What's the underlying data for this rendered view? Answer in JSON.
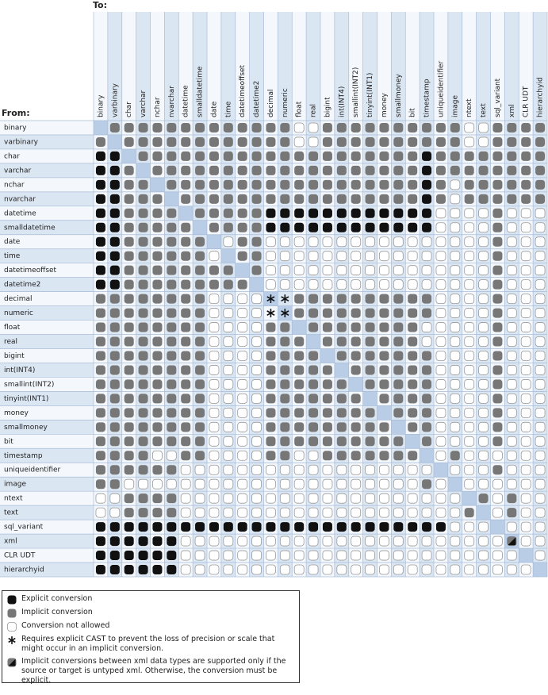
{
  "to_label": "To:",
  "from_label": "From:",
  "types": [
    "binary",
    "varbinary",
    "char",
    "varchar",
    "nchar",
    "nvarchar",
    "datetime",
    "smalldatetime",
    "date",
    "time",
    "datetimeoffset",
    "datetime2",
    "decimal",
    "numeric",
    "float",
    "real",
    "bigint",
    "int(INT4)",
    "smallint(INT2)",
    "tinyint(INT1)",
    "money",
    "smallmoney",
    "bit",
    "timestamp",
    "uniqueidentifier",
    "image",
    "ntext",
    "text",
    "sql_variant",
    "xml",
    "CLR UDT",
    "hierarchyid"
  ],
  "legend": [
    {
      "label": "Explicit conversion"
    },
    {
      "label": "Implicit conversion"
    },
    {
      "label": "Conversion not allowed"
    },
    {
      "label": "Requires explicit CAST to prevent the loss of precision or scale that might occur in an implicit conversion."
    },
    {
      "label": "Implicit conversions between xml data types are supported only if the source or target is untyped xml. Otherwise, the conversion must be explicit."
    }
  ],
  "cells": [
    [
      null,
      1,
      1,
      1,
      1,
      1,
      1,
      1,
      1,
      1,
      1,
      1,
      1,
      1,
      2,
      2,
      1,
      1,
      1,
      1,
      1,
      1,
      1,
      1,
      1,
      1,
      2,
      2,
      1,
      1,
      1,
      1
    ],
    [
      1,
      null,
      1,
      1,
      1,
      1,
      1,
      1,
      1,
      1,
      1,
      1,
      1,
      1,
      2,
      2,
      1,
      1,
      1,
      1,
      1,
      1,
      1,
      1,
      1,
      1,
      2,
      2,
      1,
      1,
      1,
      1
    ],
    [
      0,
      0,
      null,
      1,
      1,
      1,
      1,
      1,
      1,
      1,
      1,
      1,
      1,
      1,
      1,
      1,
      1,
      1,
      1,
      1,
      1,
      1,
      1,
      0,
      1,
      1,
      1,
      1,
      1,
      1,
      1,
      1
    ],
    [
      0,
      0,
      1,
      null,
      1,
      1,
      1,
      1,
      1,
      1,
      1,
      1,
      1,
      1,
      1,
      1,
      1,
      1,
      1,
      1,
      1,
      1,
      1,
      0,
      1,
      1,
      1,
      1,
      1,
      1,
      1,
      1
    ],
    [
      0,
      0,
      1,
      1,
      null,
      1,
      1,
      1,
      1,
      1,
      1,
      1,
      1,
      1,
      1,
      1,
      1,
      1,
      1,
      1,
      1,
      1,
      1,
      0,
      1,
      2,
      1,
      1,
      1,
      1,
      1,
      1
    ],
    [
      0,
      0,
      1,
      1,
      1,
      null,
      1,
      1,
      1,
      1,
      1,
      1,
      1,
      1,
      1,
      1,
      1,
      1,
      1,
      1,
      1,
      1,
      1,
      0,
      1,
      2,
      1,
      1,
      1,
      1,
      1,
      1
    ],
    [
      0,
      0,
      1,
      1,
      1,
      1,
      null,
      1,
      1,
      1,
      1,
      1,
      0,
      0,
      0,
      0,
      0,
      0,
      0,
      0,
      0,
      0,
      0,
      0,
      2,
      2,
      2,
      2,
      1,
      2,
      2,
      2
    ],
    [
      0,
      0,
      1,
      1,
      1,
      1,
      1,
      null,
      1,
      1,
      1,
      1,
      0,
      0,
      0,
      0,
      0,
      0,
      0,
      0,
      0,
      0,
      0,
      0,
      2,
      2,
      2,
      2,
      1,
      2,
      2,
      2
    ],
    [
      0,
      0,
      1,
      1,
      1,
      1,
      1,
      1,
      null,
      2,
      1,
      1,
      2,
      2,
      2,
      2,
      2,
      2,
      2,
      2,
      2,
      2,
      2,
      2,
      2,
      2,
      2,
      2,
      1,
      2,
      2,
      2
    ],
    [
      0,
      0,
      1,
      1,
      1,
      1,
      1,
      1,
      2,
      null,
      1,
      1,
      2,
      2,
      2,
      2,
      2,
      2,
      2,
      2,
      2,
      2,
      2,
      2,
      2,
      2,
      2,
      2,
      1,
      2,
      2,
      2
    ],
    [
      0,
      0,
      1,
      1,
      1,
      1,
      1,
      1,
      1,
      1,
      null,
      1,
      2,
      2,
      2,
      2,
      2,
      2,
      2,
      2,
      2,
      2,
      2,
      2,
      2,
      2,
      2,
      2,
      1,
      2,
      2,
      2
    ],
    [
      0,
      0,
      1,
      1,
      1,
      1,
      1,
      1,
      1,
      1,
      1,
      null,
      2,
      2,
      2,
      2,
      2,
      2,
      2,
      2,
      2,
      2,
      2,
      2,
      2,
      2,
      2,
      2,
      1,
      2,
      2,
      2
    ],
    [
      1,
      1,
      1,
      1,
      1,
      1,
      1,
      1,
      2,
      2,
      2,
      2,
      3,
      3,
      1,
      1,
      1,
      1,
      1,
      1,
      1,
      1,
      1,
      1,
      2,
      2,
      2,
      2,
      1,
      2,
      2,
      2
    ],
    [
      1,
      1,
      1,
      1,
      1,
      1,
      1,
      1,
      2,
      2,
      2,
      2,
      3,
      3,
      1,
      1,
      1,
      1,
      1,
      1,
      1,
      1,
      1,
      1,
      2,
      2,
      2,
      2,
      1,
      2,
      2,
      2
    ],
    [
      1,
      1,
      1,
      1,
      1,
      1,
      1,
      1,
      2,
      2,
      2,
      2,
      1,
      1,
      null,
      1,
      1,
      1,
      1,
      1,
      1,
      1,
      1,
      2,
      2,
      2,
      2,
      2,
      1,
      2,
      2,
      2
    ],
    [
      1,
      1,
      1,
      1,
      1,
      1,
      1,
      1,
      2,
      2,
      2,
      2,
      1,
      1,
      1,
      null,
      1,
      1,
      1,
      1,
      1,
      1,
      1,
      2,
      2,
      2,
      2,
      2,
      1,
      2,
      2,
      2
    ],
    [
      1,
      1,
      1,
      1,
      1,
      1,
      1,
      1,
      2,
      2,
      2,
      2,
      1,
      1,
      1,
      1,
      null,
      1,
      1,
      1,
      1,
      1,
      1,
      1,
      2,
      2,
      2,
      2,
      1,
      2,
      2,
      2
    ],
    [
      1,
      1,
      1,
      1,
      1,
      1,
      1,
      1,
      2,
      2,
      2,
      2,
      1,
      1,
      1,
      1,
      1,
      null,
      1,
      1,
      1,
      1,
      1,
      1,
      2,
      2,
      2,
      2,
      1,
      2,
      2,
      2
    ],
    [
      1,
      1,
      1,
      1,
      1,
      1,
      1,
      1,
      2,
      2,
      2,
      2,
      1,
      1,
      1,
      1,
      1,
      1,
      null,
      1,
      1,
      1,
      1,
      1,
      2,
      2,
      2,
      2,
      1,
      2,
      2,
      2
    ],
    [
      1,
      1,
      1,
      1,
      1,
      1,
      1,
      1,
      2,
      2,
      2,
      2,
      1,
      1,
      1,
      1,
      1,
      1,
      1,
      null,
      1,
      1,
      1,
      1,
      2,
      2,
      2,
      2,
      1,
      2,
      2,
      2
    ],
    [
      1,
      1,
      1,
      1,
      1,
      1,
      1,
      1,
      2,
      2,
      2,
      2,
      1,
      1,
      1,
      1,
      1,
      1,
      1,
      1,
      null,
      1,
      1,
      1,
      2,
      2,
      2,
      2,
      1,
      2,
      2,
      2
    ],
    [
      1,
      1,
      1,
      1,
      1,
      1,
      1,
      1,
      2,
      2,
      2,
      2,
      1,
      1,
      1,
      1,
      1,
      1,
      1,
      1,
      1,
      null,
      1,
      1,
      2,
      2,
      2,
      2,
      1,
      2,
      2,
      2
    ],
    [
      1,
      1,
      1,
      1,
      1,
      1,
      1,
      1,
      2,
      2,
      2,
      2,
      1,
      1,
      1,
      1,
      1,
      1,
      1,
      1,
      1,
      1,
      null,
      1,
      2,
      2,
      2,
      2,
      1,
      2,
      2,
      2
    ],
    [
      1,
      1,
      1,
      1,
      2,
      2,
      1,
      1,
      2,
      2,
      2,
      2,
      1,
      1,
      2,
      2,
      1,
      1,
      1,
      1,
      1,
      1,
      1,
      null,
      2,
      1,
      2,
      2,
      2,
      2,
      2,
      2
    ],
    [
      1,
      1,
      1,
      1,
      1,
      1,
      2,
      2,
      2,
      2,
      2,
      2,
      2,
      2,
      2,
      2,
      2,
      2,
      2,
      2,
      2,
      2,
      2,
      2,
      null,
      2,
      2,
      2,
      1,
      2,
      2,
      2
    ],
    [
      1,
      1,
      2,
      2,
      2,
      2,
      2,
      2,
      2,
      2,
      2,
      2,
      2,
      2,
      2,
      2,
      2,
      2,
      2,
      2,
      2,
      2,
      2,
      1,
      2,
      null,
      2,
      2,
      2,
      2,
      2,
      2
    ],
    [
      2,
      2,
      1,
      1,
      1,
      1,
      2,
      2,
      2,
      2,
      2,
      2,
      2,
      2,
      2,
      2,
      2,
      2,
      2,
      2,
      2,
      2,
      2,
      2,
      2,
      2,
      null,
      1,
      2,
      1,
      2,
      2
    ],
    [
      2,
      2,
      1,
      1,
      1,
      1,
      2,
      2,
      2,
      2,
      2,
      2,
      2,
      2,
      2,
      2,
      2,
      2,
      2,
      2,
      2,
      2,
      2,
      2,
      2,
      2,
      1,
      null,
      2,
      1,
      2,
      2
    ],
    [
      0,
      0,
      0,
      0,
      0,
      0,
      0,
      0,
      0,
      0,
      0,
      0,
      0,
      0,
      0,
      0,
      0,
      0,
      0,
      0,
      0,
      0,
      0,
      0,
      0,
      2,
      2,
      2,
      null,
      2,
      2,
      2
    ],
    [
      0,
      0,
      0,
      0,
      0,
      0,
      2,
      2,
      2,
      2,
      2,
      2,
      2,
      2,
      2,
      2,
      2,
      2,
      2,
      2,
      2,
      2,
      2,
      2,
      2,
      2,
      2,
      2,
      2,
      4,
      2,
      2
    ],
    [
      0,
      0,
      0,
      0,
      0,
      0,
      2,
      2,
      2,
      2,
      2,
      2,
      2,
      2,
      2,
      2,
      2,
      2,
      2,
      2,
      2,
      2,
      2,
      2,
      2,
      2,
      2,
      2,
      2,
      2,
      null,
      2
    ],
    [
      0,
      0,
      0,
      0,
      0,
      0,
      2,
      2,
      2,
      2,
      2,
      2,
      2,
      2,
      2,
      2,
      2,
      2,
      2,
      2,
      2,
      2,
      2,
      2,
      2,
      2,
      2,
      2,
      2,
      2,
      2,
      null
    ]
  ]
}
